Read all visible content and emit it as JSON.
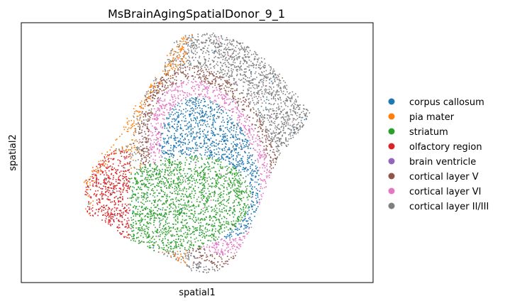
{
  "chart_data": {
    "type": "scatter",
    "title": "MsBrainAgingSpatialDonor_9_1",
    "xlabel": "spatial1",
    "ylabel": "spatial2",
    "grid": false,
    "ticks_shown": false,
    "legend_position": "right",
    "series": [
      {
        "name": "corpus callosum",
        "color": "#1f77b4"
      },
      {
        "name": "pia mater",
        "color": "#ff7f0e"
      },
      {
        "name": "striatum",
        "color": "#2ca02c"
      },
      {
        "name": "olfactory region",
        "color": "#d62728"
      },
      {
        "name": "brain ventricle",
        "color": "#9467bd"
      },
      {
        "name": "cortical layer V",
        "color": "#8c564b"
      },
      {
        "name": "cortical layer VI",
        "color": "#e377c2"
      },
      {
        "name": "cortical layer II/III",
        "color": "#7f7f7f"
      }
    ]
  }
}
